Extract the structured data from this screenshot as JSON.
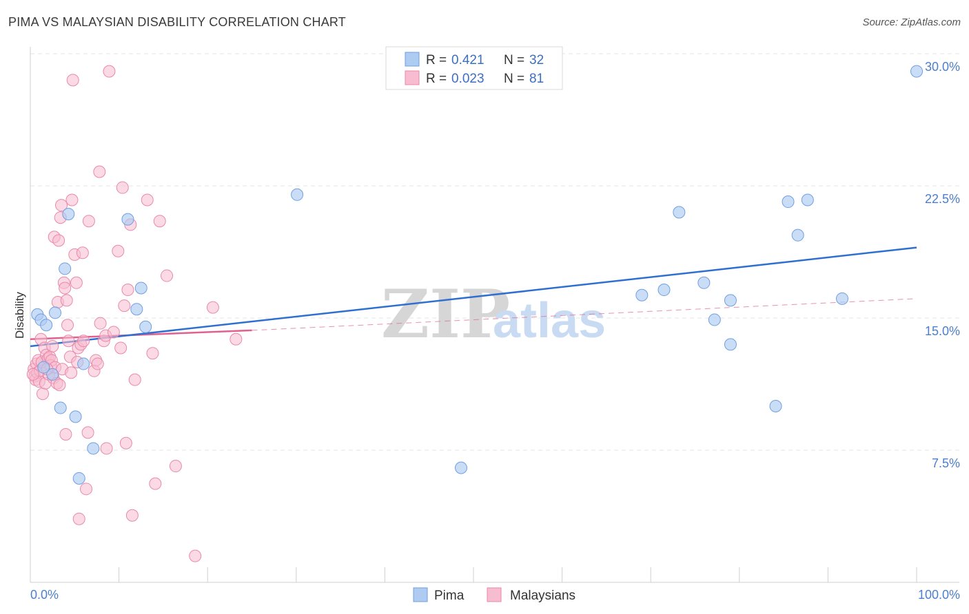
{
  "title": "PIMA VS MALAYSIAN DISABILITY CORRELATION CHART",
  "source": "Source: ZipAtlas.com",
  "watermark": {
    "zip": "ZIP",
    "atlas": "atlas"
  },
  "legend": {
    "rows": [
      {
        "r_label": "R =",
        "r_value": "0.421",
        "n_label": "N =",
        "n_value": "32",
        "color": "#aecbf2",
        "stroke": "#6f9fe0"
      },
      {
        "r_label": "R =",
        "r_value": "0.023",
        "n_label": "N =",
        "n_value": "81",
        "color": "#f7bcd0",
        "stroke": "#e889a8"
      }
    ]
  },
  "bottom_legend": {
    "pima": "Pima",
    "malaysians": "Malaysians"
  },
  "chart_data": {
    "type": "scatter",
    "title": "PIMA VS MALAYSIAN DISABILITY CORRELATION CHART",
    "xlabel": "",
    "ylabel": "Disability",
    "xlim": [
      0,
      100
    ],
    "ylim": [
      0,
      31.5
    ],
    "x_tick_labels": [
      "0.0%",
      "100.0%"
    ],
    "y_ticks": [
      7.5,
      15.0,
      22.5,
      30.0
    ],
    "y_tick_labels": [
      "7.5%",
      "15.0%",
      "22.5%",
      "30.0%"
    ],
    "grid": true,
    "legend_position": "top-center",
    "series": [
      {
        "name": "Pima",
        "color": "#6f9fe0",
        "fill": "#aecbf2",
        "trend": {
          "x0": 0,
          "y0": 13.4,
          "x1": 100,
          "y1": 19.0,
          "color": "#2f6fcf"
        },
        "points": [
          [
            0.8,
            15.2
          ],
          [
            1.2,
            14.9
          ],
          [
            1.8,
            14.6
          ],
          [
            2.8,
            15.3
          ],
          [
            3.9,
            17.8
          ],
          [
            4.3,
            20.9
          ],
          [
            2.5,
            11.8
          ],
          [
            3.4,
            9.9
          ],
          [
            5.1,
            9.4
          ],
          [
            6.0,
            12.4
          ],
          [
            7.1,
            7.6
          ],
          [
            5.5,
            5.9
          ],
          [
            11.0,
            20.6
          ],
          [
            12.5,
            16.7
          ],
          [
            12.0,
            15.5
          ],
          [
            13.0,
            14.5
          ],
          [
            30.1,
            22.0
          ],
          [
            48.6,
            6.5
          ],
          [
            69.0,
            16.3
          ],
          [
            71.5,
            16.6
          ],
          [
            73.2,
            21.0
          ],
          [
            76.0,
            17.0
          ],
          [
            77.2,
            14.9
          ],
          [
            79.0,
            16.0
          ],
          [
            79.0,
            13.5
          ],
          [
            84.1,
            10.0
          ],
          [
            85.5,
            21.6
          ],
          [
            86.6,
            19.7
          ],
          [
            87.7,
            21.7
          ],
          [
            91.6,
            16.1
          ],
          [
            100.0,
            29.0
          ],
          [
            1.5,
            12.2
          ]
        ]
      },
      {
        "name": "Malaysians",
        "color": "#e889a8",
        "fill": "#f7bcd0",
        "trend": {
          "x0": 0,
          "y0": 13.8,
          "x1": 25,
          "y1": 14.3,
          "color": "#e0608f",
          "dash_to_x": 100,
          "dash_to_y": 16.1
        },
        "points": [
          [
            0.4,
            12.1
          ],
          [
            0.5,
            11.7
          ],
          [
            0.6,
            11.5
          ],
          [
            0.7,
            12.4
          ],
          [
            0.8,
            11.9
          ],
          [
            0.9,
            12.6
          ],
          [
            1.0,
            11.4
          ],
          [
            1.1,
            12.0
          ],
          [
            1.2,
            13.8
          ],
          [
            1.3,
            12.5
          ],
          [
            1.4,
            10.7
          ],
          [
            1.6,
            13.3
          ],
          [
            1.7,
            11.3
          ],
          [
            1.8,
            12.9
          ],
          [
            2.0,
            12.7
          ],
          [
            2.1,
            11.8
          ],
          [
            2.2,
            12.8
          ],
          [
            2.3,
            12.3
          ],
          [
            2.4,
            12.6
          ],
          [
            2.5,
            13.4
          ],
          [
            2.6,
            11.6
          ],
          [
            2.7,
            19.6
          ],
          [
            2.8,
            12.2
          ],
          [
            3.0,
            11.3
          ],
          [
            3.1,
            15.9
          ],
          [
            3.2,
            19.4
          ],
          [
            3.3,
            11.2
          ],
          [
            3.4,
            20.7
          ],
          [
            3.5,
            21.4
          ],
          [
            3.6,
            12.1
          ],
          [
            3.8,
            17.0
          ],
          [
            3.9,
            16.7
          ],
          [
            4.0,
            8.4
          ],
          [
            4.1,
            16.0
          ],
          [
            4.2,
            14.6
          ],
          [
            4.3,
            13.7
          ],
          [
            4.5,
            12.8
          ],
          [
            4.6,
            11.9
          ],
          [
            4.7,
            21.7
          ],
          [
            4.8,
            28.5
          ],
          [
            5.0,
            18.6
          ],
          [
            5.2,
            17.0
          ],
          [
            5.3,
            12.5
          ],
          [
            5.4,
            13.3
          ],
          [
            5.5,
            3.6
          ],
          [
            5.7,
            13.5
          ],
          [
            5.9,
            18.7
          ],
          [
            6.0,
            13.7
          ],
          [
            6.3,
            5.3
          ],
          [
            6.5,
            8.5
          ],
          [
            6.6,
            20.5
          ],
          [
            7.2,
            12.0
          ],
          [
            7.4,
            12.6
          ],
          [
            7.6,
            12.4
          ],
          [
            7.8,
            23.3
          ],
          [
            7.9,
            14.7
          ],
          [
            8.3,
            13.7
          ],
          [
            8.5,
            14.0
          ],
          [
            8.6,
            7.6
          ],
          [
            8.9,
            29.0
          ],
          [
            9.4,
            14.2
          ],
          [
            9.9,
            18.8
          ],
          [
            10.2,
            13.3
          ],
          [
            10.4,
            22.4
          ],
          [
            10.6,
            15.7
          ],
          [
            10.8,
            7.9
          ],
          [
            11.0,
            16.6
          ],
          [
            11.3,
            20.3
          ],
          [
            11.5,
            3.8
          ],
          [
            11.8,
            11.5
          ],
          [
            13.2,
            21.7
          ],
          [
            13.8,
            13.0
          ],
          [
            14.1,
            5.6
          ],
          [
            14.6,
            20.5
          ],
          [
            15.4,
            17.4
          ],
          [
            16.4,
            6.6
          ],
          [
            18.6,
            1.5
          ],
          [
            20.6,
            15.6
          ],
          [
            23.2,
            13.8
          ],
          [
            1.9,
            12.1
          ],
          [
            0.3,
            11.8
          ]
        ]
      }
    ]
  }
}
